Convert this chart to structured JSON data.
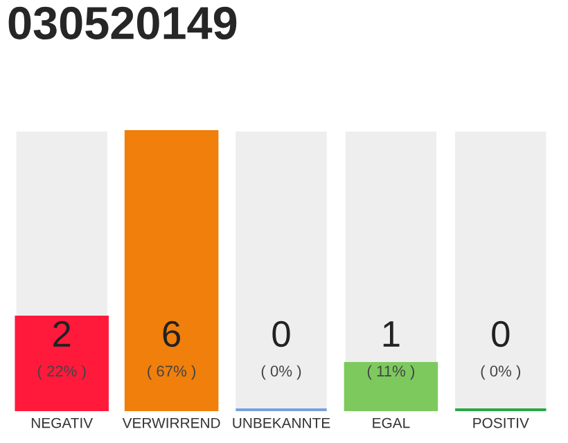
{
  "chart_data": {
    "type": "bar",
    "title": "030520149",
    "categories": [
      "NEGATIV",
      "VERWIRREND",
      "UNBEKANNTE",
      "EGAL",
      "POSITIV"
    ],
    "values": [
      2,
      6,
      0,
      1,
      0
    ],
    "colors": [
      "#ff1a3c",
      "#f07f0c",
      "#7a9fe0",
      "#7dc95e",
      "#28a745"
    ],
    "value_labels": [
      "2\n( 22% )",
      "6\n( 67% )",
      "0\n( 0% )",
      "1\n( 11% )",
      "0\n( 0% )"
    ],
    "ylim": [
      0,
      6
    ],
    "tick_labels": "x",
    "grid": false,
    "legend": false
  }
}
